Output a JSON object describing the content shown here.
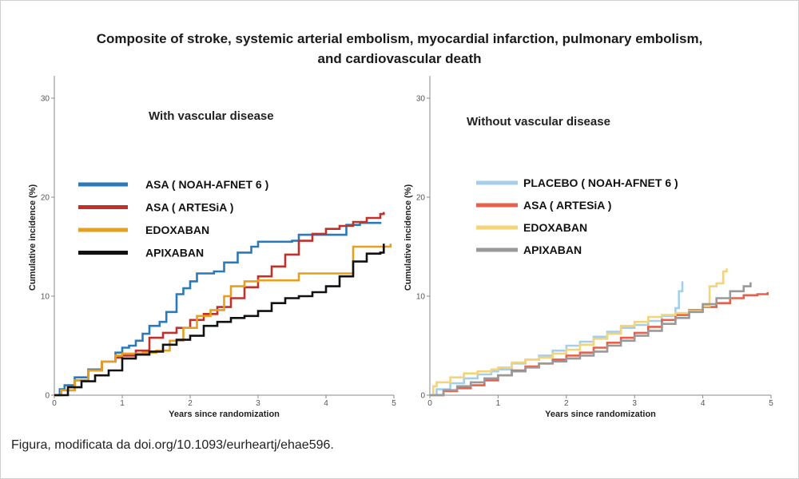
{
  "title": "Composite of stroke, systemic arterial embolism, myocardial infarction, pulmonary embolism, and cardiovascular death",
  "caption": "Figura, modificata da doi.org/10.1093/eurheartj/ehae596.",
  "chart_data": [
    {
      "type": "line",
      "subtitle": "With vascular disease",
      "xlabel": "Years since randomization",
      "ylabel": "Cumulative incidence (%)",
      "xlim": [
        0,
        5
      ],
      "ylim": [
        0,
        30
      ],
      "xticks": [
        0,
        1,
        2,
        3,
        4,
        5
      ],
      "yticks": [
        0,
        10,
        20,
        30
      ],
      "legend_position": "center-left",
      "series": [
        {
          "name": "ASA ( NOAH-AFNET 6 )",
          "color": "#2a7ab8",
          "points": [
            [
              0,
              0
            ],
            [
              0.08,
              0.6
            ],
            [
              0.15,
              1.0
            ],
            [
              0.3,
              1.8
            ],
            [
              0.5,
              2.6
            ],
            [
              0.7,
              3.4
            ],
            [
              0.9,
              4.3
            ],
            [
              1.0,
              4.8
            ],
            [
              1.1,
              5.0
            ],
            [
              1.2,
              5.5
            ],
            [
              1.3,
              6.2
            ],
            [
              1.4,
              7.0
            ],
            [
              1.55,
              7.4
            ],
            [
              1.65,
              8.4
            ],
            [
              1.8,
              10.2
            ],
            [
              1.9,
              10.8
            ],
            [
              2.0,
              11.5
            ],
            [
              2.1,
              12.3
            ],
            [
              2.35,
              12.5
            ],
            [
              2.5,
              13.4
            ],
            [
              2.7,
              14.4
            ],
            [
              2.9,
              15.0
            ],
            [
              3.0,
              15.5
            ],
            [
              3.2,
              15.5
            ],
            [
              3.5,
              15.6
            ],
            [
              3.6,
              16.2
            ],
            [
              4.2,
              16.2
            ],
            [
              4.3,
              17.2
            ],
            [
              4.5,
              17.4
            ],
            [
              4.8,
              17.5
            ]
          ]
        },
        {
          "name": "ASA ( ARTESiA )",
          "color": "#c0312b",
          "points": [
            [
              0,
              0
            ],
            [
              0.1,
              0.5
            ],
            [
              0.3,
              1.5
            ],
            [
              0.5,
              2.5
            ],
            [
              0.7,
              3.4
            ],
            [
              0.9,
              3.8
            ],
            [
              1.0,
              4.0
            ],
            [
              1.2,
              4.5
            ],
            [
              1.4,
              5.8
            ],
            [
              1.6,
              6.3
            ],
            [
              1.8,
              6.8
            ],
            [
              2.0,
              7.6
            ],
            [
              2.2,
              8.2
            ],
            [
              2.4,
              8.9
            ],
            [
              2.6,
              9.8
            ],
            [
              2.8,
              10.9
            ],
            [
              3.0,
              12.0
            ],
            [
              3.2,
              13.0
            ],
            [
              3.4,
              14.2
            ],
            [
              3.6,
              15.6
            ],
            [
              3.8,
              16.3
            ],
            [
              4.0,
              16.8
            ],
            [
              4.2,
              17.1
            ],
            [
              4.4,
              17.5
            ],
            [
              4.6,
              17.9
            ],
            [
              4.8,
              18.3
            ],
            [
              4.85,
              18.5
            ]
          ]
        },
        {
          "name": "EDOXABAN",
          "color": "#e6a01f",
          "points": [
            [
              0,
              0
            ],
            [
              0.1,
              0.5
            ],
            [
              0.3,
              1.5
            ],
            [
              0.5,
              2.5
            ],
            [
              0.7,
              3.4
            ],
            [
              0.9,
              4.0
            ],
            [
              1.0,
              4.2
            ],
            [
              1.3,
              4.3
            ],
            [
              1.5,
              4.5
            ],
            [
              1.7,
              5.5
            ],
            [
              1.9,
              6.8
            ],
            [
              2.1,
              8.0
            ],
            [
              2.3,
              8.6
            ],
            [
              2.5,
              10.0
            ],
            [
              2.6,
              11.0
            ],
            [
              2.8,
              11.5
            ],
            [
              3.0,
              11.6
            ],
            [
              3.5,
              11.6
            ],
            [
              3.6,
              12.3
            ],
            [
              4.2,
              12.3
            ],
            [
              4.4,
              15.0
            ],
            [
              4.95,
              15.3
            ]
          ]
        },
        {
          "name": "APIXABAN",
          "color": "#111111",
          "points": [
            [
              0,
              0
            ],
            [
              0.2,
              0.8
            ],
            [
              0.4,
              1.4
            ],
            [
              0.6,
              2.0
            ],
            [
              0.8,
              2.5
            ],
            [
              1.0,
              3.7
            ],
            [
              1.2,
              4.1
            ],
            [
              1.4,
              4.4
            ],
            [
              1.6,
              5.1
            ],
            [
              1.8,
              5.6
            ],
            [
              2.0,
              6.0
            ],
            [
              2.2,
              7.0
            ],
            [
              2.4,
              7.4
            ],
            [
              2.6,
              7.8
            ],
            [
              2.8,
              8.0
            ],
            [
              3.0,
              8.5
            ],
            [
              3.2,
              9.3
            ],
            [
              3.4,
              9.8
            ],
            [
              3.6,
              10.0
            ],
            [
              3.8,
              10.4
            ],
            [
              4.0,
              11.0
            ],
            [
              4.2,
              12.0
            ],
            [
              4.4,
              13.5
            ],
            [
              4.6,
              14.3
            ],
            [
              4.8,
              14.4
            ],
            [
              4.85,
              15.3
            ]
          ]
        }
      ]
    },
    {
      "type": "line",
      "subtitle": "Without vascular disease",
      "xlabel": "Years since randomization",
      "ylabel": "Cumulative incidence (%)",
      "xlim": [
        0,
        5
      ],
      "ylim": [
        0,
        30
      ],
      "xticks": [
        0,
        1,
        2,
        3,
        4,
        5
      ],
      "yticks": [
        0,
        10,
        20,
        30
      ],
      "legend_position": "center-left",
      "series": [
        {
          "name": "PLACEBO  ( NOAH-AFNET 6 )",
          "color": "#a5cfe9",
          "points": [
            [
              0,
              0
            ],
            [
              0.1,
              0.6
            ],
            [
              0.3,
              1.2
            ],
            [
              0.5,
              1.7
            ],
            [
              0.7,
              2.1
            ],
            [
              0.9,
              2.4
            ],
            [
              1.0,
              2.6
            ],
            [
              1.2,
              3.2
            ],
            [
              1.4,
              3.6
            ],
            [
              1.6,
              4.0
            ],
            [
              1.8,
              4.5
            ],
            [
              2.0,
              5.0
            ],
            [
              2.2,
              5.4
            ],
            [
              2.4,
              5.9
            ],
            [
              2.6,
              6.4
            ],
            [
              2.8,
              6.8
            ],
            [
              3.0,
              7.1
            ],
            [
              3.2,
              7.5
            ],
            [
              3.4,
              8.0
            ],
            [
              3.6,
              8.8
            ],
            [
              3.65,
              10.5
            ],
            [
              3.7,
              11.5
            ]
          ]
        },
        {
          "name": "ASA ( ARTESiA )",
          "color": "#e8604a",
          "points": [
            [
              0,
              0
            ],
            [
              0.2,
              0.4
            ],
            [
              0.4,
              0.7
            ],
            [
              0.6,
              1.0
            ],
            [
              0.8,
              1.5
            ],
            [
              1.0,
              2.0
            ],
            [
              1.2,
              2.5
            ],
            [
              1.4,
              2.9
            ],
            [
              1.6,
              3.2
            ],
            [
              1.8,
              3.6
            ],
            [
              2.0,
              4.0
            ],
            [
              2.2,
              4.3
            ],
            [
              2.4,
              4.8
            ],
            [
              2.6,
              5.3
            ],
            [
              2.8,
              5.8
            ],
            [
              3.0,
              6.3
            ],
            [
              3.2,
              6.9
            ],
            [
              3.4,
              7.6
            ],
            [
              3.6,
              8.1
            ],
            [
              3.8,
              8.6
            ],
            [
              4.0,
              8.9
            ],
            [
              4.2,
              9.3
            ],
            [
              4.4,
              9.8
            ],
            [
              4.6,
              10.1
            ],
            [
              4.8,
              10.2
            ],
            [
              4.95,
              10.4
            ]
          ]
        },
        {
          "name": "EDOXABAN",
          "color": "#f5d378",
          "points": [
            [
              0,
              0
            ],
            [
              0.05,
              0.9
            ],
            [
              0.1,
              1.3
            ],
            [
              0.3,
              1.8
            ],
            [
              0.5,
              2.2
            ],
            [
              0.7,
              2.4
            ],
            [
              0.9,
              2.6
            ],
            [
              1.0,
              2.8
            ],
            [
              1.2,
              3.3
            ],
            [
              1.4,
              3.6
            ],
            [
              1.6,
              3.8
            ],
            [
              1.8,
              4.2
            ],
            [
              2.0,
              4.6
            ],
            [
              2.2,
              5.1
            ],
            [
              2.4,
              5.7
            ],
            [
              2.6,
              6.2
            ],
            [
              2.8,
              7.0
            ],
            [
              3.0,
              7.4
            ],
            [
              3.2,
              7.9
            ],
            [
              3.4,
              8.1
            ],
            [
              3.6,
              8.3
            ],
            [
              3.8,
              8.5
            ],
            [
              4.0,
              9.0
            ],
            [
              4.1,
              11.0
            ],
            [
              4.2,
              11.3
            ],
            [
              4.3,
              12.5
            ],
            [
              4.35,
              12.8
            ]
          ]
        },
        {
          "name": "APIXABAN",
          "color": "#999999",
          "points": [
            [
              0,
              0
            ],
            [
              0.2,
              0.5
            ],
            [
              0.4,
              0.9
            ],
            [
              0.6,
              1.3
            ],
            [
              0.8,
              1.7
            ],
            [
              1.0,
              2.0
            ],
            [
              1.2,
              2.4
            ],
            [
              1.4,
              2.8
            ],
            [
              1.6,
              3.2
            ],
            [
              1.8,
              3.4
            ],
            [
              2.0,
              3.7
            ],
            [
              2.2,
              4.0
            ],
            [
              2.4,
              4.4
            ],
            [
              2.6,
              5.0
            ],
            [
              2.8,
              5.5
            ],
            [
              3.0,
              6.0
            ],
            [
              3.2,
              6.5
            ],
            [
              3.4,
              7.2
            ],
            [
              3.6,
              7.8
            ],
            [
              3.8,
              8.4
            ],
            [
              4.0,
              9.2
            ],
            [
              4.2,
              9.8
            ],
            [
              4.4,
              10.5
            ],
            [
              4.6,
              11.0
            ],
            [
              4.7,
              11.4
            ]
          ]
        }
      ]
    }
  ]
}
